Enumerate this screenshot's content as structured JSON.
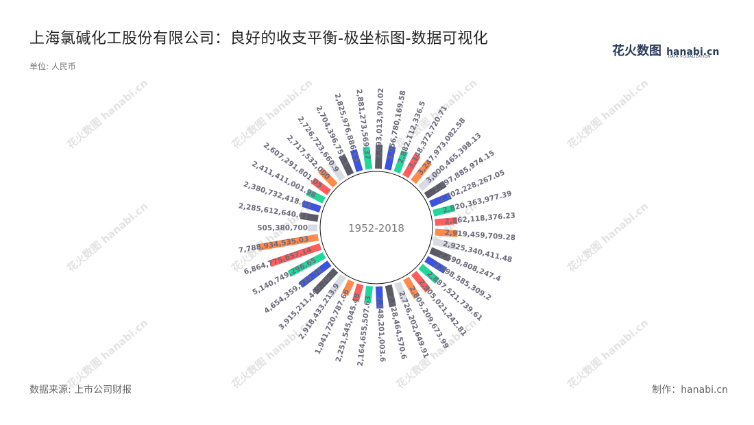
{
  "title": "上海氯碱化工股份有限公司：良好的收支平衡-极坐标图-数据可视化",
  "unit_label": "单位: 人民币",
  "logo": {
    "cn": "花火数图",
    "en": "hanabi.cn",
    "sub": "DATA VISUALIZATION"
  },
  "source": "数据来源: 上市公司财报",
  "maker": "制作：hanabi.cn",
  "watermark_text": "花火数图 hanabi.cn",
  "colors": [
    "#5a5a66",
    "#3a53e0",
    "#1fd89a",
    "#ff5c5c",
    "#ff8a4c",
    "#d9dbe3"
  ],
  "chart_data": {
    "type": "polar-bar",
    "center_label": "1952-2018",
    "values": [
      "3,093,013,970.02",
      "3,056,780,169.58",
      "2,882,112,336.5",
      "3,148,372,720.71",
      "3,247,973,082.58",
      "3,000,465,398.13",
      "2,897,885,974.15",
      "2,802,228,267.05",
      "2,820,363,977.39",
      "2,862,118,376.23",
      "2,919,459,709.28",
      "2,925,340,411.48",
      "2,690,808,247.4",
      "2,898,585,309.2",
      "2,887,521,739.61",
      "2,905,021,242.81",
      "2,805,209,673.99",
      "2,726,202,649.91",
      "2,828,464,570.6",
      "2,848,201,003.6",
      "2,164,655,507.63",
      "2,251,545,045.48",
      "1,941,720,787.66",
      "2,918,433,213.9",
      "3,915,211,449.76",
      "4,654,359,938.58",
      "5,140,749,296.65",
      "6,864,775,657.14",
      "7,788,934,535.03",
      "505,380,700",
      "2,285,612,640.61",
      "2,380,732,418.04",
      "2,411,411,001.98",
      "2,607,291,801.05",
      "2,717,532,000",
      "2,726,723,660.9",
      "2,704,396,751.1",
      "2,825,976,886.63",
      "2,881,273,569.37"
    ]
  }
}
